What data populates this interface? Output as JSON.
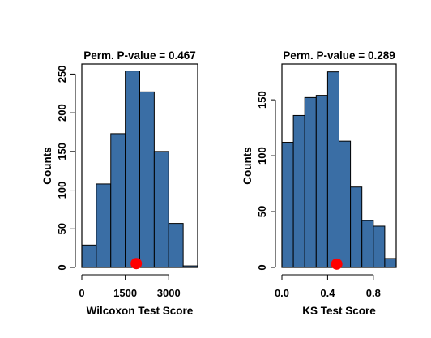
{
  "chart_data": [
    {
      "type": "bar",
      "title": "Perm. P-value = 0.467",
      "xlabel": "Wilcoxon Test Score",
      "ylabel": "Counts",
      "bin_width": 500,
      "bins": [
        {
          "x0": 0,
          "x1": 500,
          "count": 29
        },
        {
          "x0": 500,
          "x1": 1000,
          "count": 108
        },
        {
          "x0": 1000,
          "x1": 1500,
          "count": 173
        },
        {
          "x0": 1500,
          "x1": 2000,
          "count": 254
        },
        {
          "x0": 2000,
          "x1": 2500,
          "count": 227
        },
        {
          "x0": 2500,
          "x1": 3000,
          "count": 150
        },
        {
          "x0": 3000,
          "x1": 3500,
          "count": 57
        },
        {
          "x0": 3500,
          "x1": 4000,
          "count": 2
        }
      ],
      "observed": {
        "x": 1880,
        "y": 5
      },
      "xlim": [
        0,
        4000
      ],
      "ylim": [
        0,
        263
      ],
      "xticks": [
        0,
        1500,
        3000
      ],
      "yticks": [
        0,
        50,
        100,
        150,
        200,
        250
      ],
      "bar_color": "#3a6ea5",
      "marker_color": "#ff0000"
    },
    {
      "type": "bar",
      "title": "Perm. P-value = 0.289",
      "xlabel": "KS Test Score",
      "ylabel": "Counts",
      "bin_width": 0.1,
      "bins": [
        {
          "x0": 0.0,
          "x1": 0.1,
          "count": 112
        },
        {
          "x0": 0.1,
          "x1": 0.2,
          "count": 136
        },
        {
          "x0": 0.2,
          "x1": 0.3,
          "count": 152
        },
        {
          "x0": 0.3,
          "x1": 0.4,
          "count": 154
        },
        {
          "x0": 0.4,
          "x1": 0.5,
          "count": 175
        },
        {
          "x0": 0.5,
          "x1": 0.6,
          "count": 113
        },
        {
          "x0": 0.6,
          "x1": 0.7,
          "count": 72
        },
        {
          "x0": 0.7,
          "x1": 0.8,
          "count": 42
        },
        {
          "x0": 0.8,
          "x1": 0.9,
          "count": 37
        },
        {
          "x0": 0.9,
          "x1": 1.0,
          "count": 8
        }
      ],
      "observed": {
        "x": 0.48,
        "y": 3
      },
      "xlim": [
        0,
        1.0
      ],
      "ylim": [
        0,
        182
      ],
      "xticks": [
        "0.0",
        "0.4",
        "0.8"
      ],
      "yticks": [
        0,
        50,
        100,
        150
      ],
      "bar_color": "#3a6ea5",
      "marker_color": "#ff0000"
    }
  ]
}
